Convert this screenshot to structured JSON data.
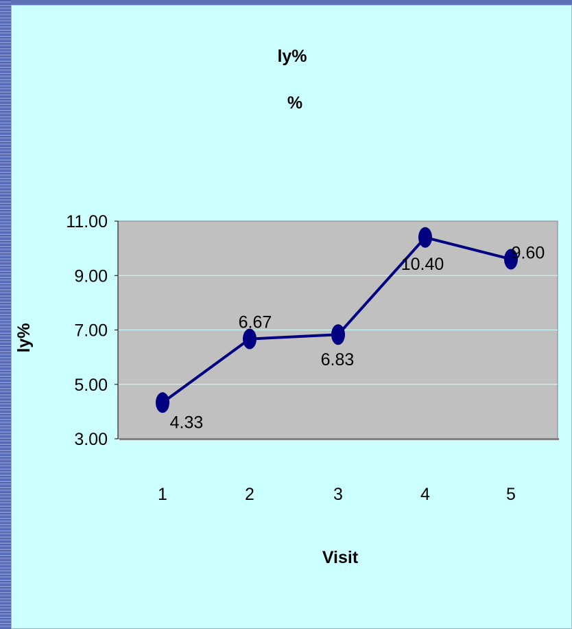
{
  "chart_data": {
    "type": "line",
    "title": "ly%",
    "subtitle": "%",
    "xlabel": "Visit",
    "ylabel": "ly%",
    "categories": [
      "1",
      "2",
      "3",
      "4",
      "5"
    ],
    "y_ticks": [
      "3.00",
      "5.00",
      "7.00",
      "9.00",
      "11.00"
    ],
    "ylim": [
      3,
      11
    ],
    "series": [
      {
        "values": [
          4.33,
          6.67,
          6.83,
          10.4,
          9.6
        ],
        "labels": [
          "4.33",
          "6.67",
          "6.83",
          "10.40",
          "9.60"
        ]
      }
    ],
    "grid": true,
    "legend": "none",
    "colors": {
      "line": "#000080",
      "plot_background": "#c0c0c0",
      "gridline": "#ccffff",
      "frame_background": "#ccffff"
    }
  }
}
